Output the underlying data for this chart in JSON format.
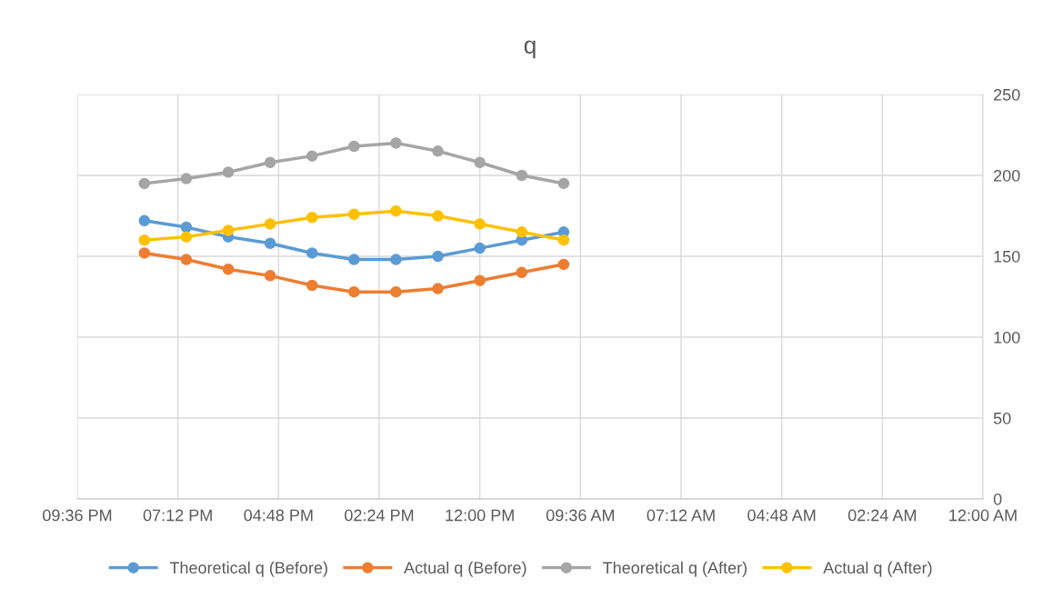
{
  "chart_data": {
    "type": "line",
    "title": "q",
    "x": [
      20,
      19,
      18,
      17,
      16,
      15,
      14,
      13,
      12,
      11,
      10
    ],
    "series": [
      {
        "name": "Theoretical q (Before)",
        "color": "#5b9bd5",
        "values": [
          172,
          168,
          162,
          158,
          152,
          148,
          148,
          150,
          155,
          160,
          165
        ]
      },
      {
        "name": "Actual q (Before)",
        "color": "#ed7d31",
        "values": [
          152,
          148,
          142,
          138,
          132,
          128,
          128,
          130,
          135,
          140,
          145
        ]
      },
      {
        "name": "Theoretical q (After)",
        "color": "#a5a5a5",
        "values": [
          195,
          198,
          202,
          208,
          212,
          218,
          220,
          215,
          208,
          200,
          195
        ]
      },
      {
        "name": "Actual q (After)",
        "color": "#ffc000",
        "values": [
          160,
          162,
          166,
          170,
          174,
          176,
          178,
          175,
          170,
          165,
          160
        ]
      }
    ],
    "xlim": [
      21.6,
      0
    ],
    "xticks": [
      {
        "value": 21.6,
        "label": "09:36 PM"
      },
      {
        "value": 19.2,
        "label": "07:12 PM"
      },
      {
        "value": 16.8,
        "label": "04:48 PM"
      },
      {
        "value": 14.4,
        "label": "02:24 PM"
      },
      {
        "value": 12,
        "label": "12:00 PM"
      },
      {
        "value": 9.6,
        "label": "09:36 AM"
      },
      {
        "value": 7.2,
        "label": "07:12 AM"
      },
      {
        "value": 4.8,
        "label": "04:48 AM"
      },
      {
        "value": 2.4,
        "label": "02:24 AM"
      },
      {
        "value": 0,
        "label": "12:00 AM"
      }
    ],
    "ylim": [
      0,
      250
    ],
    "yticks": [
      0,
      50,
      100,
      150,
      200,
      250
    ],
    "grid": true,
    "legend": "bottom",
    "marker": "circle",
    "line_style": "solid"
  }
}
